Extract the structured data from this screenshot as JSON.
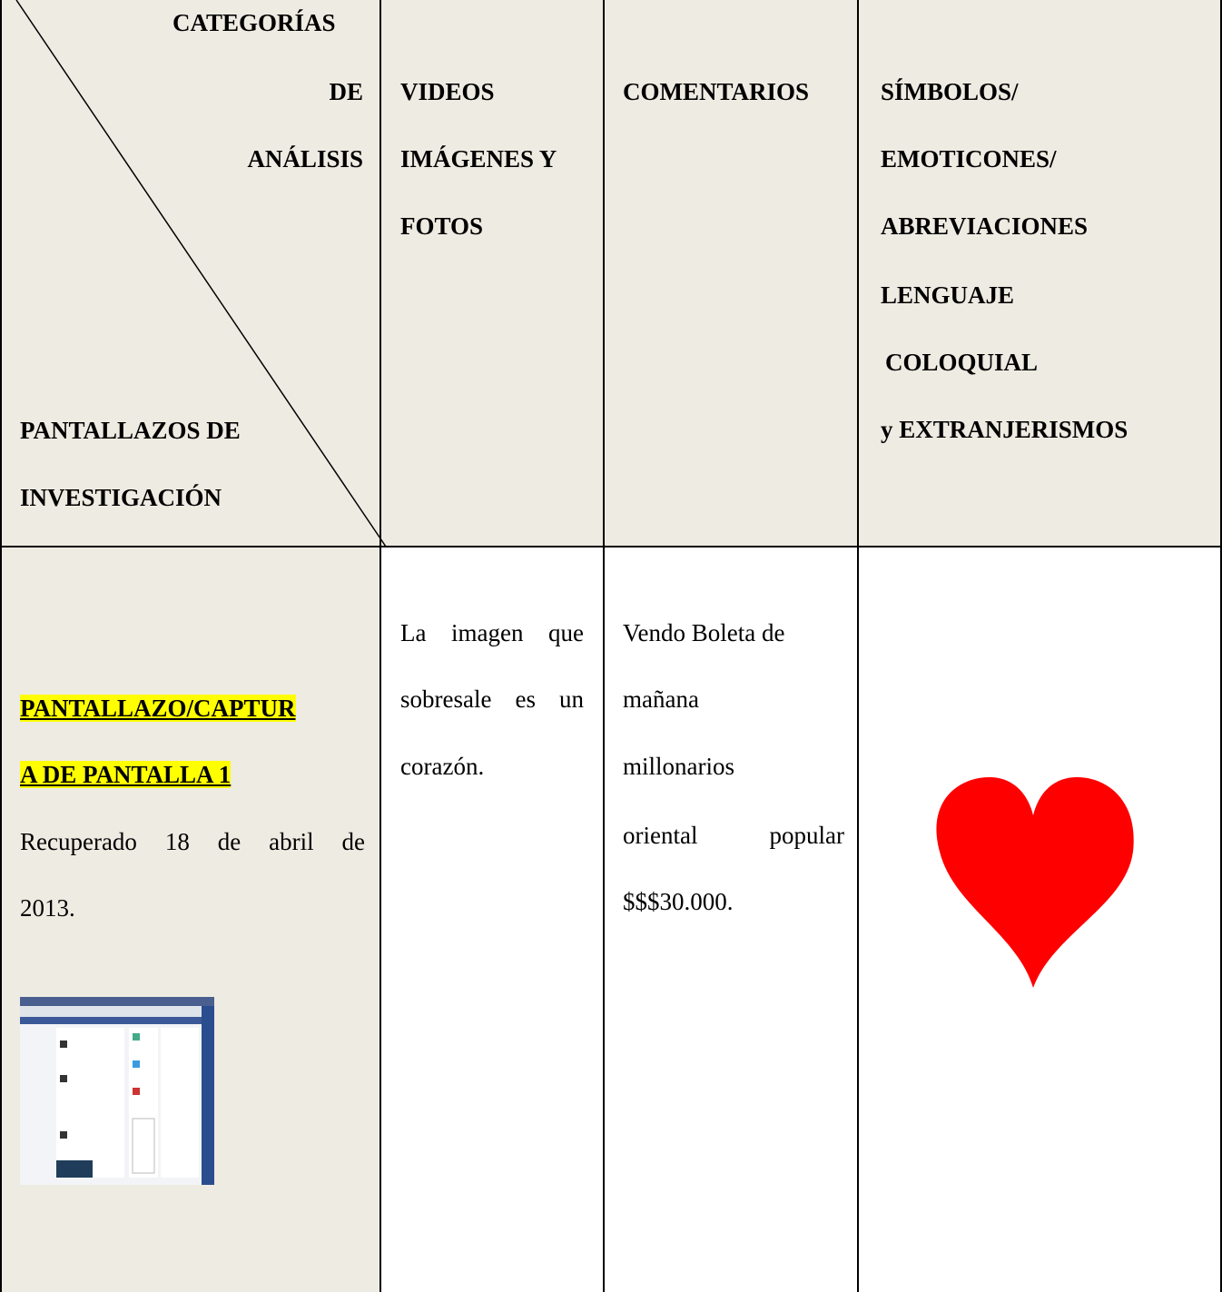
{
  "header": {
    "corner": {
      "top": [
        "CATEGORÍAS",
        "DE",
        "ANÁLISIS"
      ],
      "bottom": [
        "PANTALLAZOS DE",
        "INVESTIGACIÓN"
      ]
    },
    "columns": [
      [
        "VIDEOS",
        "IMÁGENES Y",
        "FOTOS"
      ],
      [
        "COMENTARIOS"
      ],
      [
        "SÍMBOLOS/",
        "EMOTICONES/",
        "ABREVIACIONES",
        "LENGUAJE",
        "COLOQUIAL",
        "y EXTRANJERISMOS"
      ]
    ]
  },
  "rows": [
    {
      "title": [
        "PANTALLAZO/CAPTUR",
        "A DE PANTALLA 1"
      ],
      "source": [
        "Recuperado 18 de abril de",
        "2013."
      ],
      "images": [
        "La imagen que",
        "sobresale es un",
        "corazón."
      ],
      "comments": [
        "Vendo Boleta de",
        "mañana",
        "millonarios",
        "oriental popular",
        "$$$30.000."
      ]
    }
  ]
}
